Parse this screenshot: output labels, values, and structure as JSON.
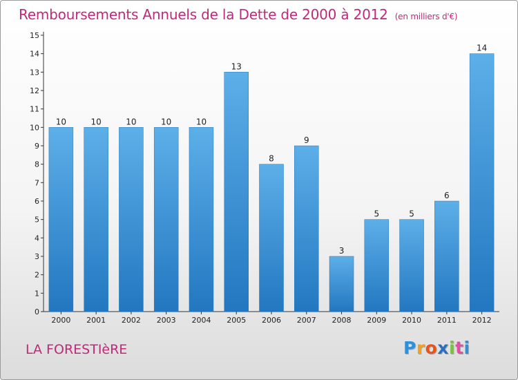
{
  "title": "Remboursements Annuels de la Dette de 2000 à 2012",
  "unit": "(en milliers d'€)",
  "place": "LA FORESTIèRE",
  "logo": {
    "letters": [
      "P",
      "r",
      "o",
      "x",
      "i",
      "t",
      "i"
    ],
    "colors": [
      "#2f8fd8",
      "#f0a21e",
      "#e8541c",
      "#2a6fbf",
      "#7ac143",
      "#e34fa0",
      "#2f8fd8"
    ]
  },
  "colors": {
    "bar": "#3d9be0",
    "bar_light": "#5dafe8",
    "bar_dark": "#2277c0",
    "title": "#c0297a",
    "axis": "#333333"
  },
  "chart_data": {
    "type": "bar",
    "categories": [
      "2000",
      "2001",
      "2002",
      "2003",
      "2004",
      "2005",
      "2006",
      "2007",
      "2008",
      "2009",
      "2010",
      "2011",
      "2012"
    ],
    "values": [
      10,
      10,
      10,
      10,
      10,
      13,
      8,
      9,
      3,
      5,
      5,
      6,
      14
    ],
    "yticks": [
      "0",
      "1",
      "2",
      "3",
      "4",
      "5",
      "6",
      "7",
      "8",
      "9",
      "10",
      "11",
      "12",
      "13",
      "14",
      "15"
    ],
    "ylim": [
      0,
      15
    ],
    "grid": false,
    "legend": "none"
  }
}
